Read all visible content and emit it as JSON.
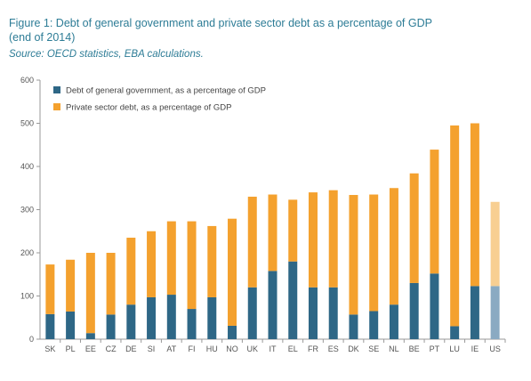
{
  "figure": {
    "title_line1": "Figure 1: Debt of general government and private sector debt as a percentage of GDP",
    "title_line2": "(end of 2014)",
    "source": "Source: OECD statistics, EBA calculations."
  },
  "colors": {
    "government": "#2e6786",
    "private": "#f4a12e",
    "government_light": "#8aaac2",
    "private_light": "#f8cf92",
    "axis": "#999999",
    "background": "#ffffff"
  },
  "chart_data": {
    "type": "bar",
    "stacked": true,
    "categories": [
      "SK",
      "PL",
      "EE",
      "CZ",
      "DE",
      "SI",
      "AT",
      "FI",
      "HU",
      "NO",
      "UK",
      "IT",
      "EL",
      "FR",
      "ES",
      "DK",
      "SE",
      "NL",
      "BE",
      "PT",
      "LU",
      "IE",
      "US"
    ],
    "highlighted_category": "US",
    "series": [
      {
        "name": "Debt of general government, as a percentage of GDP",
        "values": [
          58,
          64,
          14,
          57,
          80,
          97,
          103,
          70,
          97,
          31,
          120,
          158,
          180,
          120,
          120,
          57,
          65,
          80,
          130,
          152,
          30,
          123,
          123
        ]
      },
      {
        "name": "Private sector debt, as a percentage of GDP",
        "values": [
          115,
          120,
          186,
          143,
          155,
          153,
          170,
          203,
          165,
          248,
          210,
          177,
          143,
          220,
          225,
          277,
          270,
          270,
          254,
          287,
          465,
          377,
          195
        ]
      }
    ],
    "xlabel": "",
    "ylabel": "",
    "ylim": [
      0,
      600
    ],
    "yticks": [
      0,
      100,
      200,
      300,
      400,
      500,
      600
    ],
    "grid": false,
    "legend_position": "top-left"
  }
}
